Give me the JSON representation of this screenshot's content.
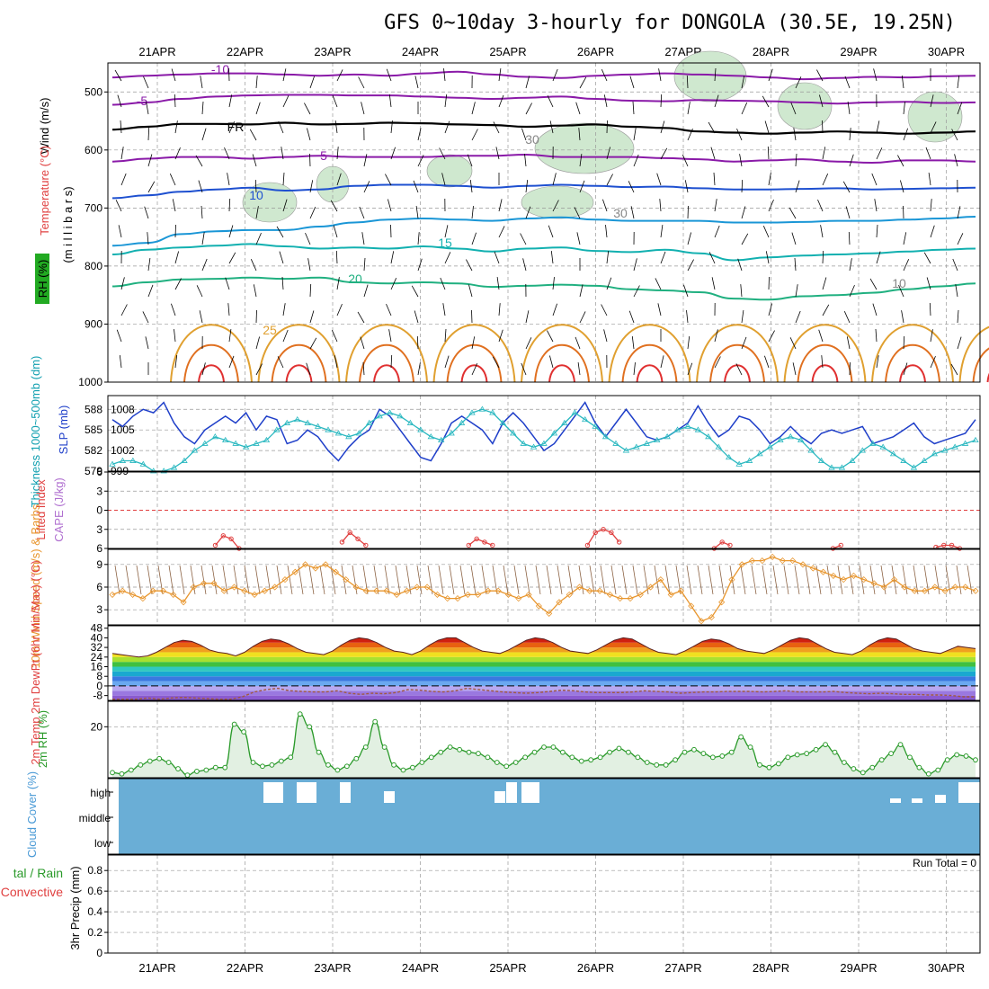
{
  "title": "GFS 0~10day 3-hourly for DONGOLA (30.5E, 19.25N)",
  "dates": [
    "21APR",
    "22APR",
    "23APR",
    "24APR",
    "25APR",
    "26APR",
    "27APR",
    "28APR",
    "29APR",
    "30APR"
  ],
  "colors": {
    "temp_purple": "#8a1aa8",
    "temp_blue": "#1e50d0",
    "temp_cyan": "#1a96d6",
    "temp_teal": "#12b0b0",
    "temp_green": "#20b080",
    "temp_orange": "#e0a030",
    "temp_red": "#e03030",
    "rh_fill": "#cfe8cf",
    "slp": "#1f3fc9",
    "thickness": "#2ab8c0",
    "cape_li": "#e04040",
    "wind10": "#e8962e",
    "rh2m": "#2a9a2a",
    "cloud": "#6aaed6",
    "precip": "#2a9a2a"
  },
  "chart_data": [
    {
      "type": "contour",
      "panel": "upper_air",
      "ylabel_parts": [
        "Wind (m/s)",
        "Temperature (°C)",
        "RH (%)",
        "(m i l l i b a r s)"
      ],
      "yticks": [
        500,
        600,
        700,
        800,
        900,
        1000
      ],
      "ylim": [
        1000,
        450
      ],
      "contour_labels": [
        "-10",
        "-5",
        "FR",
        "5",
        "10",
        "15",
        "20",
        "25",
        "30",
        "10",
        "30"
      ],
      "isotherms": [
        {
          "name": "-10",
          "pressure": [
            475,
            472,
            470,
            468,
            468,
            470,
            472,
            470,
            472,
            468,
            465,
            470,
            474,
            476,
            472,
            470,
            468,
            470,
            472,
            475,
            478,
            476,
            474,
            475,
            473,
            472
          ]
        },
        {
          "name": "-5",
          "pressure": [
            522,
            518,
            512,
            508,
            506,
            505,
            505,
            506,
            506,
            508,
            510,
            512,
            510,
            508,
            512,
            515,
            516,
            514,
            515,
            516,
            518,
            520,
            518,
            517,
            519,
            518
          ]
        },
        {
          "name": "FR",
          "pressure": [
            565,
            560,
            555,
            555,
            556,
            553,
            556,
            555,
            553,
            554,
            556,
            557,
            560,
            558,
            556,
            560,
            562,
            568,
            570,
            572,
            570,
            568,
            570,
            572,
            570,
            568
          ]
        },
        {
          "name": "5",
          "pressure": [
            620,
            615,
            612,
            612,
            615,
            612,
            610,
            612,
            612,
            612,
            610,
            610,
            608,
            612,
            612,
            612,
            614,
            616,
            620,
            618,
            616,
            620,
            622,
            618,
            618,
            620
          ]
        },
        {
          "name": "10",
          "pressure": [
            683,
            678,
            672,
            668,
            665,
            670,
            668,
            662,
            660,
            660,
            662,
            665,
            662,
            660,
            662,
            664,
            663,
            666,
            668,
            668,
            667,
            666,
            668,
            667,
            666,
            665
          ]
        },
        {
          "name": "15",
          "pressure": [
            765,
            760,
            745,
            740,
            738,
            738,
            732,
            725,
            720,
            718,
            720,
            722,
            718,
            716,
            720,
            722,
            722,
            722,
            725,
            725,
            724,
            722,
            722,
            720,
            718,
            715
          ]
        },
        {
          "name": "20",
          "pressure": [
            780,
            772,
            768,
            765,
            762,
            766,
            770,
            768,
            770,
            766,
            770,
            775,
            770,
            768,
            774,
            776,
            772,
            778,
            790,
            785,
            782,
            780,
            778,
            775,
            772,
            770
          ]
        },
        {
          "name": "25",
          "pressure": [
            835,
            828,
            823,
            822,
            820,
            822,
            820,
            828,
            830,
            828,
            830,
            836,
            834,
            832,
            834,
            840,
            842,
            845,
            856,
            858,
            852,
            850,
            846,
            840,
            835,
            830
          ]
        }
      ],
      "wind_barbs": "present"
    },
    {
      "type": "line",
      "panel": "slp_thickness",
      "ylabel_left": "Thickness 1000~500mb (dm)",
      "ylabel_right": "SLP (mb)",
      "yticks_left": [
        579,
        582,
        585,
        588
      ],
      "yticks_right": [
        999,
        1002,
        1005,
        1008
      ],
      "series": [
        {
          "name": "SLP (mb)",
          "values": [
            1006.5,
            1005.5,
            1007,
            1008,
            1007.5,
            1009,
            1006,
            1004,
            1003,
            1005,
            1006,
            1007,
            1006,
            1007.5,
            1005,
            1007,
            1006.5,
            1003,
            1003.5,
            1005,
            1004,
            1002,
            1000.5,
            1002.5,
            1004,
            1005,
            1008,
            1007,
            1005,
            1003,
            1001,
            1000.5,
            1003,
            1006,
            1007,
            1006,
            1005,
            1003,
            1006,
            1007.5,
            1006,
            1004,
            1002,
            1003,
            1005,
            1007,
            1009,
            1006,
            1004,
            1006,
            1008,
            1006,
            1004,
            1003.5,
            1004,
            1005,
            1006,
            1008.5,
            1006,
            1004,
            1005,
            1007,
            1006.5,
            1005,
            1003,
            1004,
            1005.5,
            1004,
            1003,
            1004.5,
            1005,
            1004.5,
            1005,
            1005.5,
            1003,
            1003.5,
            1004,
            1005,
            1006,
            1004,
            1003,
            1003.5,
            1004,
            1004.5,
            1006.5
          ]
        },
        {
          "name": "Thickness 1000~500mb (dm)",
          "values": [
            580,
            580.5,
            580.5,
            580,
            579,
            579,
            579.5,
            580.5,
            582,
            583,
            584,
            583.5,
            583,
            582.5,
            583,
            583.5,
            585,
            586,
            586.5,
            586,
            585.5,
            585,
            584.5,
            584,
            584.5,
            586,
            587,
            587.5,
            587,
            586,
            585,
            584,
            583.5,
            584.5,
            586,
            587.5,
            588,
            587.5,
            586,
            584.5,
            583,
            582.5,
            583,
            584.5,
            586,
            587.5,
            586.5,
            585.5,
            584,
            583,
            582,
            582.5,
            583,
            583.5,
            584,
            585,
            585.5,
            585,
            584,
            582.5,
            581,
            580,
            580.5,
            581.5,
            582.5,
            583.5,
            584,
            583.5,
            582,
            580.5,
            579.5,
            579.5,
            580.5,
            582,
            583,
            582.5,
            581.5,
            580.5,
            579.5,
            580.5,
            581.5,
            582,
            582.5,
            583,
            583.5
          ]
        }
      ]
    },
    {
      "type": "line",
      "panel": "cape_li",
      "ylabel_left": "Lifted Index",
      "ylabel_right": "CAPE (J/kg)",
      "yticks": [
        -6,
        -3,
        0,
        3,
        6
      ],
      "ylim": [
        -6,
        6
      ],
      "series": [
        {
          "name": "Lifted Index",
          "segments": [
            {
              "x_index": [
                13,
                14,
                15,
                16
              ],
              "values": [
                5.5,
                4,
                4.5,
                6
              ]
            },
            {
              "x_index": [
                29,
                30,
                31,
                32
              ],
              "values": [
                5,
                3.5,
                4.5,
                5.5
              ]
            },
            {
              "x_index": [
                45,
                46,
                47,
                48
              ],
              "values": [
                5.5,
                4.5,
                5,
                5.5
              ]
            },
            {
              "x_index": [
                60,
                61,
                62,
                63,
                64
              ],
              "values": [
                5.5,
                3.5,
                3,
                3.5,
                5
              ]
            },
            {
              "x_index": [
                76,
                77,
                78
              ],
              "values": [
                6,
                5,
                5.5
              ]
            },
            {
              "x_index": [
                91,
                92
              ],
              "values": [
                6,
                5.5
              ]
            },
            {
              "x_index": [
                104,
                105,
                106,
                107
              ],
              "values": [
                5.8,
                5.5,
                5.5,
                6
              ]
            }
          ]
        }
      ]
    },
    {
      "type": "line",
      "panel": "wind10m",
      "ylabel": "10m Wind Speed (m/s) & Barbs",
      "yticks": [
        3,
        6,
        9
      ],
      "series": [
        {
          "name": "10m Wind Speed",
          "values": [
            5,
            5.5,
            5,
            4.5,
            5.5,
            5.5,
            5,
            4,
            6,
            6.5,
            6.5,
            5.5,
            6,
            5.5,
            5,
            5.5,
            6,
            7,
            8,
            9,
            8.5,
            9,
            8,
            7,
            6,
            5.5,
            5.5,
            5.5,
            5,
            5.5,
            6,
            6,
            5,
            4.5,
            4.5,
            5,
            5,
            5.5,
            5.5,
            5,
            4.5,
            5,
            3.5,
            2.5,
            4,
            5,
            6,
            5.5,
            5.5,
            5,
            4.5,
            4.5,
            5,
            6,
            7,
            5,
            5.5,
            3.5,
            1.5,
            2,
            4,
            7,
            9,
            9.5,
            9.5,
            10,
            9.5,
            9.5,
            9,
            8.5,
            8,
            7.5,
            7,
            7.5,
            7,
            6.5,
            6,
            7,
            6,
            5.5,
            5.5,
            6,
            5.5,
            6,
            6,
            5.5
          ]
        }
      ]
    },
    {
      "type": "area",
      "panel": "temp2m",
      "ylabel": "2m Temp 2m DewPt (6hr Min/Max) (°C)",
      "yticks": [
        -8,
        0,
        8,
        16,
        24,
        32,
        40,
        48
      ],
      "series": [
        {
          "name": "2m Temp",
          "values": [
            27,
            26,
            25,
            24,
            25,
            28,
            32,
            36,
            38,
            37,
            34,
            30,
            28,
            27,
            25,
            28,
            33,
            37,
            39,
            38,
            35,
            31,
            28,
            27,
            26,
            29,
            34,
            38,
            40,
            39,
            36,
            32,
            29,
            28,
            26,
            29,
            34,
            38,
            40,
            40,
            36,
            32,
            29,
            28,
            27,
            30,
            34,
            38,
            40,
            39,
            36,
            32,
            29,
            28,
            27,
            30,
            34,
            38,
            40,
            39,
            35,
            31,
            28,
            27,
            26,
            29,
            33,
            37,
            39,
            38,
            35,
            31,
            29,
            28,
            27,
            30,
            34,
            38,
            40,
            39,
            35,
            31,
            28,
            27,
            26,
            29,
            34,
            38,
            40,
            39,
            35,
            31,
            29,
            28,
            27,
            30,
            33,
            32,
            31
          ]
        },
        {
          "name": "2m DewPt",
          "values": [
            -11,
            -11,
            -11,
            -10,
            -11,
            -10,
            -9.5,
            -10,
            -10.5,
            -11,
            -11,
            -9,
            -5,
            -3,
            -2,
            -4,
            -4.5,
            -5,
            -5,
            -4,
            -6,
            -7,
            -6,
            -6.5,
            -5.5,
            -3,
            -3.5,
            -4.5,
            -5,
            -4,
            -2,
            -3,
            -4,
            -5,
            -5.5,
            -6,
            -5.5,
            -4.5,
            -3.5,
            -4,
            -5,
            -5.5,
            -5.5,
            -5.5,
            -5,
            -4,
            -4.5,
            -5,
            -6,
            -5.5,
            -5,
            -5,
            -4.5,
            -4.5,
            -4.5,
            -5,
            -4.5,
            -4,
            -5,
            -5,
            -5,
            -4.5,
            -5.5,
            -6,
            -6.5,
            -6,
            -6.5,
            -7,
            -7,
            -7.5,
            -7.5,
            -8,
            -9,
            -9
          ]
        }
      ]
    },
    {
      "type": "area",
      "panel": "rh2m",
      "ylabel": "2m RH (%)",
      "yticks": [
        20
      ],
      "series": [
        {
          "name": "2m RH",
          "values": [
            2,
            1.5,
            3,
            5,
            6.5,
            7.5,
            6,
            3.5,
            1,
            2.5,
            3,
            4,
            4,
            21,
            18,
            6,
            4.5,
            5,
            6.5,
            8,
            25,
            20,
            10,
            5,
            3,
            4.5,
            7.5,
            12,
            22,
            12,
            5,
            3,
            4,
            6,
            8,
            10,
            12,
            11,
            10,
            9.5,
            8,
            6,
            4.5,
            6,
            8,
            10,
            12,
            12,
            10,
            8,
            6.5,
            7,
            8,
            10,
            11.5,
            10,
            8,
            6,
            5,
            5,
            7,
            10,
            11,
            9.5,
            8,
            8.5,
            10,
            16,
            12,
            5,
            4,
            5.5,
            8,
            9,
            9.5,
            11,
            13,
            10,
            6,
            3.5,
            2,
            4,
            7,
            9.5,
            13,
            8,
            4,
            1.5,
            3,
            7,
            9,
            8.5,
            7
          ]
        }
      ]
    },
    {
      "type": "heatmap",
      "panel": "cloud_cover",
      "ylabel": "Cloud Cover (%)",
      "levels": [
        "high",
        "middle",
        "low"
      ]
    },
    {
      "type": "bar",
      "panel": "precip",
      "ylabel": "3hr Precip (mm)",
      "ylabel_left_parts": [
        "tal / Rain",
        "Convective"
      ],
      "yticks": [
        0,
        0.2,
        0.4,
        0.6,
        0.8
      ],
      "ylim": [
        0,
        1
      ],
      "annotation": "Run Total = 0",
      "values": []
    }
  ]
}
